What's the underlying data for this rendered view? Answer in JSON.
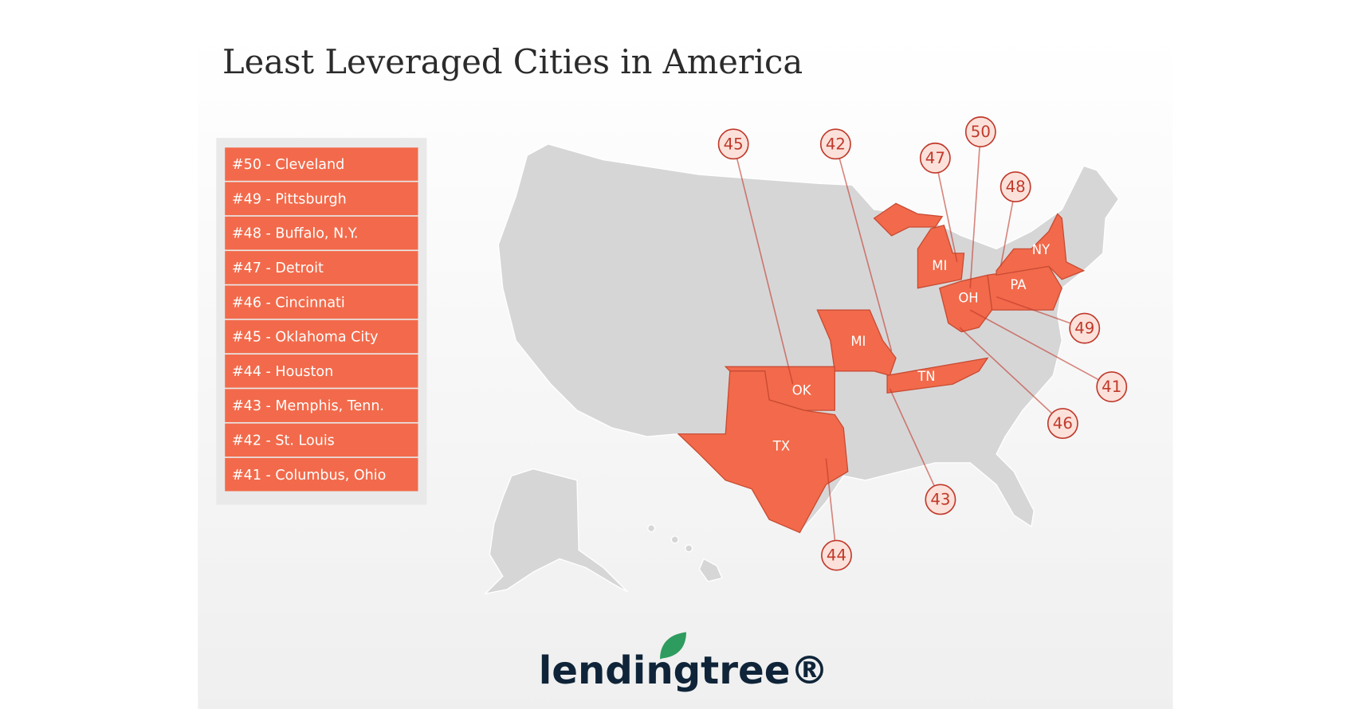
{
  "title": "Least Leveraged Cities in America",
  "list": [
    "#50 - Cleveland",
    "#49 - Pittsburgh",
    "#48 - Buffalo, N.Y.",
    "#47 - Detroit",
    "#46 - Cincinnati",
    "#45 - Oklahoma City",
    "#44 - Houston",
    "#43 - Memphis, Tenn.",
    "#42 - St. Louis",
    "#41 - Columbus, Ohio"
  ],
  "states": [
    "MI",
    "NY",
    "PA",
    "OH",
    "MI",
    "TN",
    "OK",
    "TX"
  ],
  "callouts": [
    "45",
    "42",
    "47",
    "50",
    "48",
    "49",
    "41",
    "46",
    "43",
    "44"
  ],
  "logo": "lendingtree®"
}
